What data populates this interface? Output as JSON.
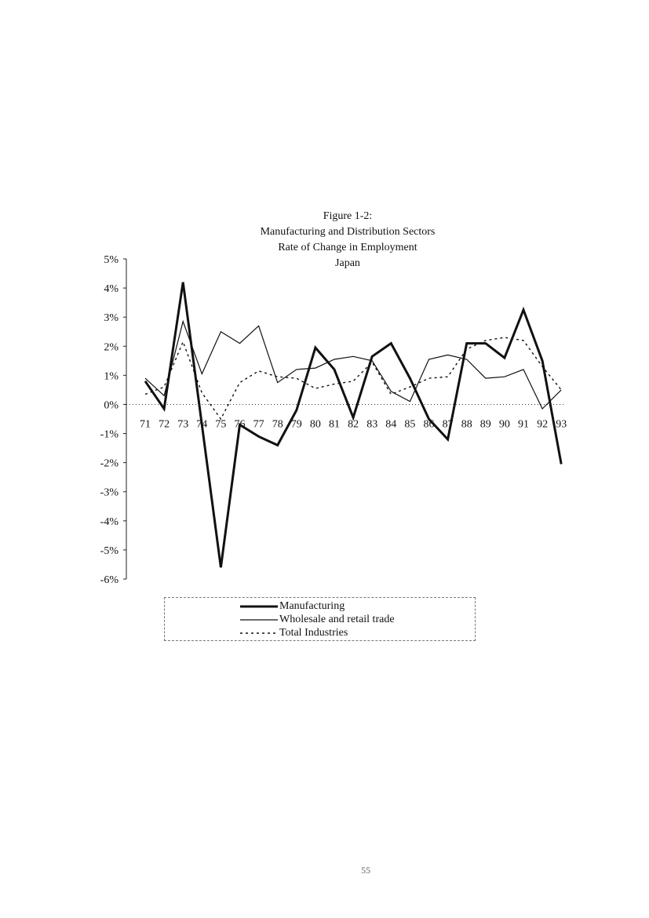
{
  "figure": {
    "title_line1": "Figure 1-2:",
    "title_line2": "Manufacturing and Distribution Sectors",
    "title_line3": "Rate of Change in Employment",
    "title_line4": "Japan"
  },
  "chart_data": {
    "type": "line",
    "title": "Figure 1-2: Manufacturing and Distribution Sectors Rate of Change in Employment Japan",
    "xlabel": "",
    "ylabel": "",
    "ylim": [
      -6,
      5
    ],
    "y_ticks": [
      "5%",
      "4%",
      "3%",
      "2%",
      "1%",
      "0%",
      "-1%",
      "-2%",
      "-3%",
      "-4%",
      "-5%",
      "-6%"
    ],
    "categories": [
      "71",
      "72",
      "73",
      "74",
      "75",
      "76",
      "77",
      "78",
      "79",
      "80",
      "81",
      "82",
      "83",
      "84",
      "85",
      "86",
      "87",
      "88",
      "89",
      "90",
      "91",
      "92",
      "93"
    ],
    "series": [
      {
        "name": "Manufacturing",
        "style": "thick-solid",
        "values": [
          0.8,
          -0.15,
          4.2,
          -0.7,
          -5.6,
          -0.7,
          -1.1,
          -1.4,
          -0.2,
          1.95,
          1.2,
          -0.45,
          1.65,
          2.1,
          0.9,
          -0.5,
          -1.2,
          2.1,
          2.1,
          1.6,
          3.25,
          1.5,
          -2.05
        ]
      },
      {
        "name": "Wholesale and retail trade",
        "style": "thin-solid",
        "values": [
          0.9,
          0.3,
          2.85,
          1.05,
          2.5,
          2.1,
          2.7,
          0.75,
          1.2,
          1.25,
          1.55,
          1.65,
          1.5,
          0.45,
          0.1,
          1.55,
          1.7,
          1.55,
          0.9,
          0.95,
          1.2,
          -0.15,
          0.5
        ]
      },
      {
        "name": "Total Industries",
        "style": "dotted",
        "values": [
          0.35,
          0.6,
          2.15,
          0.4,
          -0.5,
          0.75,
          1.15,
          0.95,
          0.9,
          0.55,
          0.7,
          0.8,
          1.45,
          0.35,
          0.6,
          0.9,
          0.95,
          1.9,
          2.2,
          2.3,
          2.2,
          1.3,
          0.5
        ]
      }
    ],
    "grid": false,
    "legend_position": "bottom"
  },
  "legend": {
    "items": [
      {
        "label": "Manufacturing"
      },
      {
        "label": "Wholesale and retail trade"
      },
      {
        "label": "Total Industries"
      }
    ]
  },
  "page_number": "55"
}
